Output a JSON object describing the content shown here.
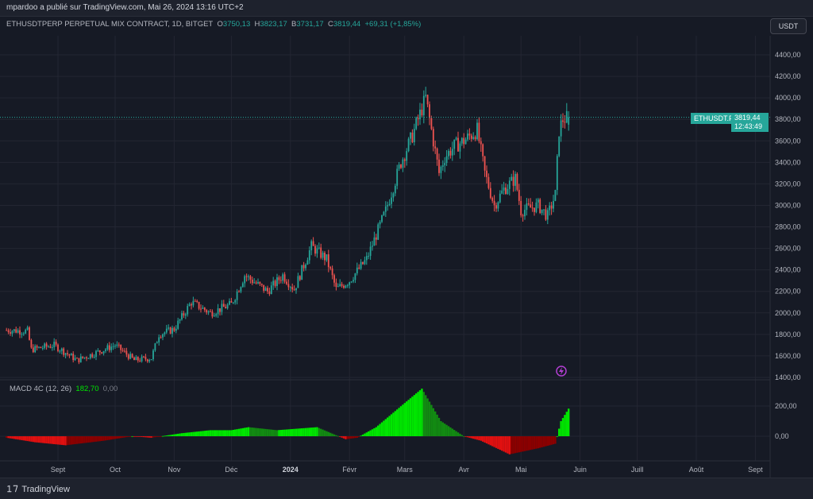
{
  "header": {
    "published": "mpardoo a publié sur TradingView.com, Mai 26, 2024 13:16 UTC+2"
  },
  "legend": {
    "symbol": "ETHUSDTPERP PERPETUAL MIX CONTRACT, 1D, BITGET",
    "o_label": "O",
    "o": "3750,13",
    "h_label": "H",
    "h": "3823,17",
    "l_label": "B",
    "l": "3731,17",
    "c_label": "C",
    "c": "3819,44",
    "change": "+69,31 (+1,85%)"
  },
  "currency_button": "USDT",
  "price_tag": {
    "symbol": "ETHUSDT.P",
    "price": "3819,44",
    "countdown": "12:43:49"
  },
  "macd_legend": {
    "name": "MACD 4C (12, 26)",
    "value": "182,70",
    "zero": "0,00"
  },
  "footer": {
    "brand": "TradingView"
  },
  "colors": {
    "up": "#26a69a",
    "down": "#ef5350",
    "background": "#161a25",
    "macd_up_rising": "#00e600",
    "macd_up_falling": "#128a12",
    "macd_down_falling": "#e01010",
    "macd_down_rising": "#8b0000"
  },
  "chart_data": [
    {
      "type": "candlestick",
      "title": "ETHUSDTPERP PERPETUAL MIX CONTRACT, 1D, BITGET",
      "y_ticks": [
        "4400,00",
        "4200,00",
        "4000,00",
        "3800,00",
        "3600,00",
        "3400,00",
        "3200,00",
        "3000,00",
        "2800,00",
        "2600,00",
        "2400,00",
        "2200,00",
        "2000,00",
        "1800,00",
        "1600,00",
        "1400,00"
      ],
      "ylim": [
        1400,
        4400
      ],
      "x_ticks": [
        "Sept",
        "Oct",
        "Nov",
        "Déc",
        "2024",
        "Févr",
        "Mars",
        "Avr",
        "Mai",
        "Juin",
        "Juill",
        "Août",
        "Sept"
      ],
      "last_price": 3819.44,
      "close_keypoints": [
        [
          "2023-08-05",
          1840
        ],
        [
          "2023-08-16",
          1830
        ],
        [
          "2023-08-18",
          1660
        ],
        [
          "2023-08-30",
          1700
        ],
        [
          "2023-09-11",
          1560
        ],
        [
          "2023-10-01",
          1700
        ],
        [
          "2023-10-11",
          1560
        ],
        [
          "2023-10-20",
          1580
        ],
        [
          "2023-10-24",
          1800
        ],
        [
          "2023-11-01",
          1850
        ],
        [
          "2023-11-10",
          2100
        ],
        [
          "2023-11-20",
          2000
        ],
        [
          "2023-12-01",
          2080
        ],
        [
          "2023-12-08",
          2350
        ],
        [
          "2023-12-20",
          2200
        ],
        [
          "2023-12-28",
          2350
        ],
        [
          "2024-01-03",
          2220
        ],
        [
          "2024-01-12",
          2620
        ],
        [
          "2024-01-20",
          2500
        ],
        [
          "2024-01-25",
          2220
        ],
        [
          "2024-02-01",
          2300
        ],
        [
          "2024-02-10",
          2500
        ],
        [
          "2024-02-20",
          2950
        ],
        [
          "2024-02-28",
          3400
        ],
        [
          "2024-03-05",
          3650
        ],
        [
          "2024-03-12",
          4000
        ],
        [
          "2024-03-19",
          3300
        ],
        [
          "2024-03-22",
          3450
        ],
        [
          "2024-03-27",
          3550
        ],
        [
          "2024-04-01",
          3600
        ],
        [
          "2024-04-08",
          3700
        ],
        [
          "2024-04-12",
          3300
        ],
        [
          "2024-04-17",
          3000
        ],
        [
          "2024-04-22",
          3150
        ],
        [
          "2024-04-28",
          3250
        ],
        [
          "2024-05-01",
          2950
        ],
        [
          "2024-05-10",
          3000
        ],
        [
          "2024-05-15",
          2900
        ],
        [
          "2024-05-19",
          3100
        ],
        [
          "2024-05-21",
          3700
        ],
        [
          "2024-05-23",
          3800
        ],
        [
          "2024-05-26",
          3819.44
        ]
      ]
    },
    {
      "type": "bar",
      "title": "MACD 4C (12, 26)",
      "y_ticks": [
        "200,00",
        "0,00"
      ],
      "ylim": [
        -150,
        360
      ],
      "histogram_keypoints": [
        [
          "2023-08-05",
          -10
        ],
        [
          "2023-08-20",
          -40
        ],
        [
          "2023-09-05",
          -60
        ],
        [
          "2023-09-25",
          -30
        ],
        [
          "2023-10-10",
          0
        ],
        [
          "2023-10-20",
          -10
        ],
        [
          "2023-11-05",
          20
        ],
        [
          "2023-11-20",
          40
        ],
        [
          "2023-12-01",
          40
        ],
        [
          "2023-12-10",
          60
        ],
        [
          "2023-12-25",
          40
        ],
        [
          "2024-01-15",
          60
        ],
        [
          "2024-01-30",
          -20
        ],
        [
          "2024-02-05",
          -10
        ],
        [
          "2024-02-15",
          60
        ],
        [
          "2024-03-01",
          220
        ],
        [
          "2024-03-10",
          315
        ],
        [
          "2024-03-20",
          100
        ],
        [
          "2024-04-01",
          0
        ],
        [
          "2024-04-10",
          -30
        ],
        [
          "2024-04-25",
          -120
        ],
        [
          "2024-05-10",
          -80
        ],
        [
          "2024-05-19",
          -50
        ],
        [
          "2024-05-22",
          100
        ],
        [
          "2024-05-26",
          182.7
        ]
      ]
    }
  ]
}
